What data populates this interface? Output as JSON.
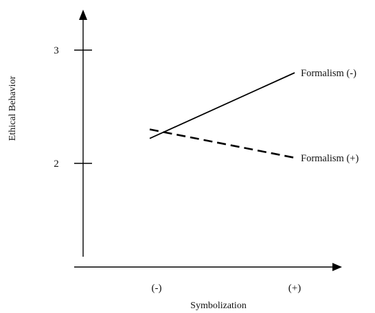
{
  "chart_data": {
    "type": "line",
    "xlabel": "Symbolization",
    "ylabel": "Ethical Behavior",
    "categories": [
      "(-)",
      "(+)"
    ],
    "y_ticks": [
      "2",
      "3"
    ],
    "series": [
      {
        "name": "Formalism (-)",
        "style": "solid",
        "values": [
          2.22,
          2.8
        ]
      },
      {
        "name": "Formalism (+)",
        "style": "dashed",
        "values": [
          2.3,
          2.05
        ]
      }
    ],
    "grid": false,
    "legend": "inline-right"
  }
}
